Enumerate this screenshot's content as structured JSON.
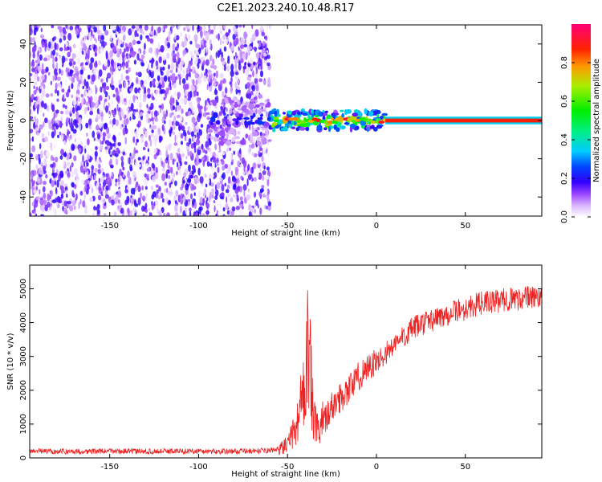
{
  "title": "C2E1.2023.240.10.48.R17",
  "chart_data": [
    {
      "type": "heatmap",
      "xlabel": "Height of straight line (km)",
      "ylabel": "Frequency (Hz)",
      "xlim": [
        -195,
        93
      ],
      "ylim": [
        -50,
        50
      ],
      "x_ticks": [
        -150,
        -100,
        -50,
        0,
        50
      ],
      "y_ticks": [
        -40,
        -20,
        0,
        20,
        40
      ],
      "grid": false,
      "colorbar": {
        "label": "Normalized spectral amplitude",
        "range": [
          0,
          1
        ],
        "ticks": [
          0.0,
          0.2,
          0.4,
          0.6,
          0.8
        ],
        "colors": [
          "#ffffff",
          "#cc88ff",
          "#7700ee",
          "#0000ff",
          "#00ccff",
          "#00ee00",
          "#ccee00",
          "#ff8800",
          "#ff0000",
          "#ff0077"
        ]
      },
      "regions": [
        {
          "x": [
            -195,
            -60
          ],
          "freq": [
            -50,
            50
          ],
          "amplitude": [
            0.0,
            0.2
          ],
          "description_color": "#7a2be6"
        },
        {
          "x": [
            -60,
            5
          ],
          "freq": [
            -6,
            6
          ],
          "amplitude": [
            0.2,
            0.9
          ]
        },
        {
          "x": [
            5,
            93
          ],
          "freq": [
            -1,
            1
          ],
          "amplitude": [
            0.9,
            1.0
          ]
        }
      ]
    },
    {
      "type": "line",
      "xlabel": "Height of straight line (km)",
      "ylabel": "SNR (10 * v/v)",
      "xlim": [
        -195,
        93
      ],
      "ylim": [
        0,
        5700
      ],
      "x_ticks": [
        -150,
        -100,
        -50,
        0,
        50
      ],
      "y_ticks": [
        0,
        1000,
        2000,
        3000,
        4000,
        5000
      ],
      "grid": false,
      "series": [
        {
          "color": "#ee2222",
          "x": [
            -195,
            -170,
            -150,
            -130,
            -110,
            -90,
            -70,
            -60,
            -55,
            -50,
            -45,
            -42,
            -40,
            -38,
            -36,
            -34,
            -32,
            -30,
            -25,
            -20,
            -15,
            -10,
            -5,
            0,
            5,
            10,
            15,
            20,
            25,
            30,
            35,
            40,
            45,
            50,
            55,
            60,
            65,
            70,
            75,
            80,
            85,
            90,
            93
          ],
          "y": [
            200,
            190,
            200,
            190,
            200,
            190,
            200,
            220,
            260,
            400,
            900,
            1800,
            2800,
            3300,
            1500,
            900,
            700,
            1100,
            1500,
            1800,
            2100,
            2400,
            2700,
            2800,
            3100,
            3300,
            3600,
            3800,
            3950,
            4050,
            4150,
            4250,
            4350,
            4400,
            4500,
            4600,
            4600,
            4650,
            4700,
            4700,
            4750,
            4750,
            4800
          ]
        }
      ]
    }
  ]
}
